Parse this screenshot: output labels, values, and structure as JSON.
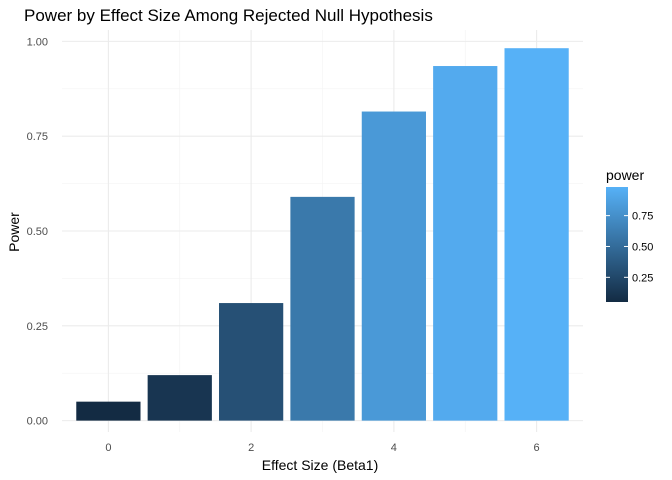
{
  "chart_data": {
    "type": "bar",
    "title": "Power by Effect Size Among Rejected Null Hypothesis",
    "xlabel": "Effect Size (Beta1)",
    "ylabel": "Power",
    "x": [
      0,
      1,
      2,
      3,
      4,
      5,
      6
    ],
    "values": [
      0.05,
      0.12,
      0.31,
      0.59,
      0.815,
      0.935,
      0.982
    ],
    "x_ticks": [
      0,
      2,
      4,
      6
    ],
    "x_tick_labels": [
      "0",
      "2",
      "4",
      "6"
    ],
    "y_ticks": [
      0,
      0.25,
      0.5,
      0.75,
      1.0
    ],
    "y_tick_labels": [
      "0.00",
      "0.25",
      "0.50",
      "0.75",
      "1.00"
    ],
    "xlim": [
      -0.65,
      6.65
    ],
    "ylim": [
      -0.03,
      1.03
    ],
    "grid": true,
    "legend": {
      "title": "power",
      "placement": "right",
      "type": "colorbar",
      "range": [
        0.05,
        0.982
      ],
      "ticks": [
        0.25,
        0.5,
        0.75
      ],
      "tick_labels": [
        "0.25",
        "0.50",
        "0.75"
      ],
      "low_color": "#132b43",
      "high_color": "#56b1f7"
    }
  }
}
